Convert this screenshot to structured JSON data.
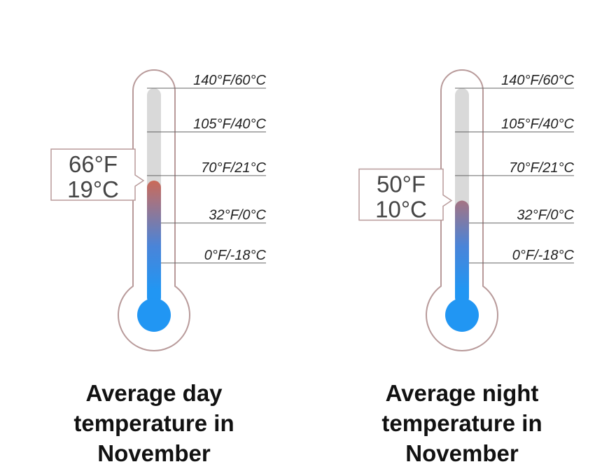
{
  "colors": {
    "outline": "#b89a9a",
    "track": "#d9d9d9",
    "fluid_cold": "#2196f3",
    "fluid_warm": "#e0633f",
    "tick": "#666666"
  },
  "scale_min_f": -22,
  "scale_max_f": 140,
  "scale_labels": [
    {
      "f": 140,
      "text": "140°F/60°C"
    },
    {
      "f": 105,
      "text": "105°F/40°C"
    },
    {
      "f": 70,
      "text": "70°F/21°C"
    },
    {
      "f": 32,
      "text": "32°F/0°C"
    },
    {
      "f": 0,
      "text": "0°F/-18°C"
    }
  ],
  "thermometers": [
    {
      "id": "day",
      "value_f": 66,
      "readout_f": "66°F",
      "readout_c": "19°C",
      "caption": [
        "Average day",
        "temperature in",
        "November"
      ]
    },
    {
      "id": "night",
      "value_f": 50,
      "readout_f": "50°F",
      "readout_c": "10°C",
      "caption": [
        "Average night",
        "temperature in",
        "November"
      ]
    }
  ]
}
